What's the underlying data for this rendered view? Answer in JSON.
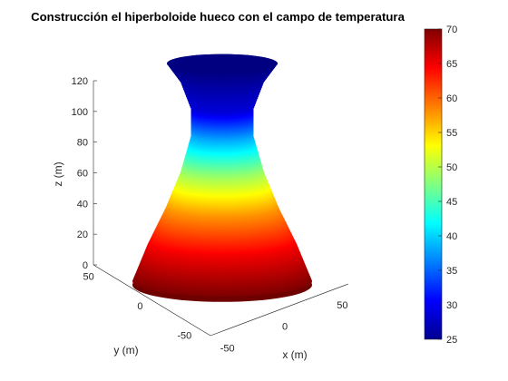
{
  "chart_data": {
    "type": "surface3d",
    "title": "Construcción el hiperboloide hueco con el campo de temperatura",
    "xlabel": "x (m)",
    "ylabel": "y (m)",
    "zlabel": "z (m)",
    "x_ticks": [
      "-50",
      "0",
      "50"
    ],
    "y_ticks": [
      "-50",
      "0",
      "50"
    ],
    "z_ticks": [
      "0",
      "20",
      "40",
      "60",
      "80",
      "100",
      "120"
    ],
    "xlim": [
      -60,
      60
    ],
    "ylim": [
      -60,
      60
    ],
    "zlim": [
      0,
      120
    ],
    "surface": {
      "shape": "hyperboloid of one sheet (hollow)",
      "z_range": [
        0,
        120
      ],
      "profile": [
        {
          "z": 0,
          "radius": 60
        },
        {
          "z": 20,
          "radius": 50
        },
        {
          "z": 40,
          "radius": 38
        },
        {
          "z": 60,
          "radius": 28
        },
        {
          "z": 80,
          "radius": 21
        },
        {
          "z": 95,
          "radius": 21
        },
        {
          "z": 110,
          "radius": 28
        },
        {
          "z": 120,
          "radius": 37
        }
      ],
      "temperature_profile": [
        {
          "z": 0,
          "t": 70
        },
        {
          "z": 20,
          "t": 65
        },
        {
          "z": 40,
          "t": 58
        },
        {
          "z": 60,
          "t": 49
        },
        {
          "z": 80,
          "t": 38
        },
        {
          "z": 95,
          "t": 29
        },
        {
          "z": 120,
          "t": 25
        }
      ]
    },
    "colorbar": {
      "colormap": "jet",
      "min": 25,
      "max": 70,
      "ticks": [
        "25",
        "30",
        "35",
        "40",
        "45",
        "50",
        "55",
        "60",
        "65",
        "70"
      ]
    },
    "grid": false,
    "legend": "none"
  }
}
